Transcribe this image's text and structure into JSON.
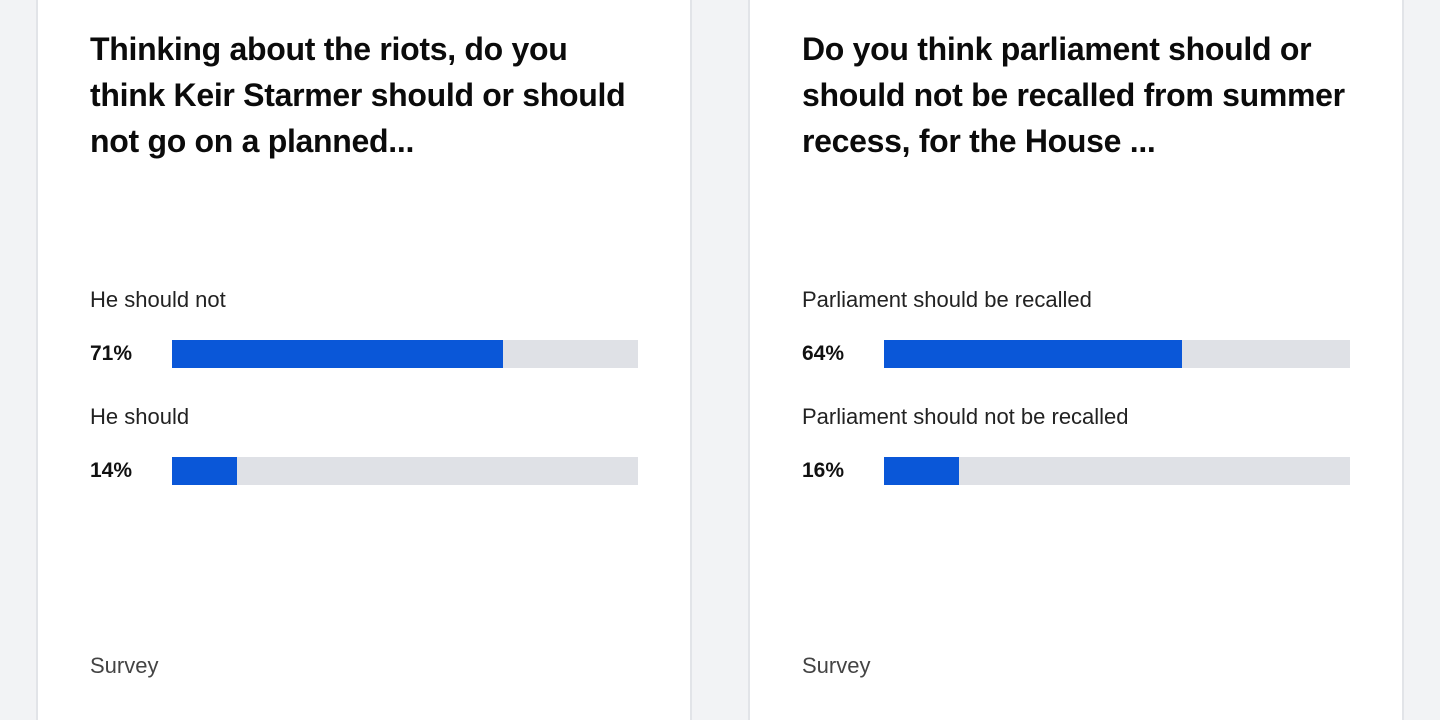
{
  "chart_data": [
    {
      "type": "bar",
      "title": "Thinking about the riots, do you think Keir Starmer should or should not go on a planned...",
      "categories": [
        "He should not",
        "He should"
      ],
      "values": [
        71,
        14
      ],
      "value_labels": [
        "71%",
        "14%"
      ],
      "ylim": [
        0,
        100
      ],
      "footer": "Survey"
    },
    {
      "type": "bar",
      "title": "Do you think parliament should or should not be recalled from summer recess, for the House ...",
      "categories": [
        "Parliament should be recalled",
        "Parliament should not be recalled"
      ],
      "values": [
        64,
        16
      ],
      "value_labels": [
        "64%",
        "16%"
      ],
      "ylim": [
        0,
        100
      ],
      "footer": "Survey"
    }
  ],
  "colors": {
    "bar_fill": "#0a57d8",
    "bar_track": "#dfe1e6",
    "card_background": "#ffffff",
    "page_background": "#f2f3f5"
  }
}
